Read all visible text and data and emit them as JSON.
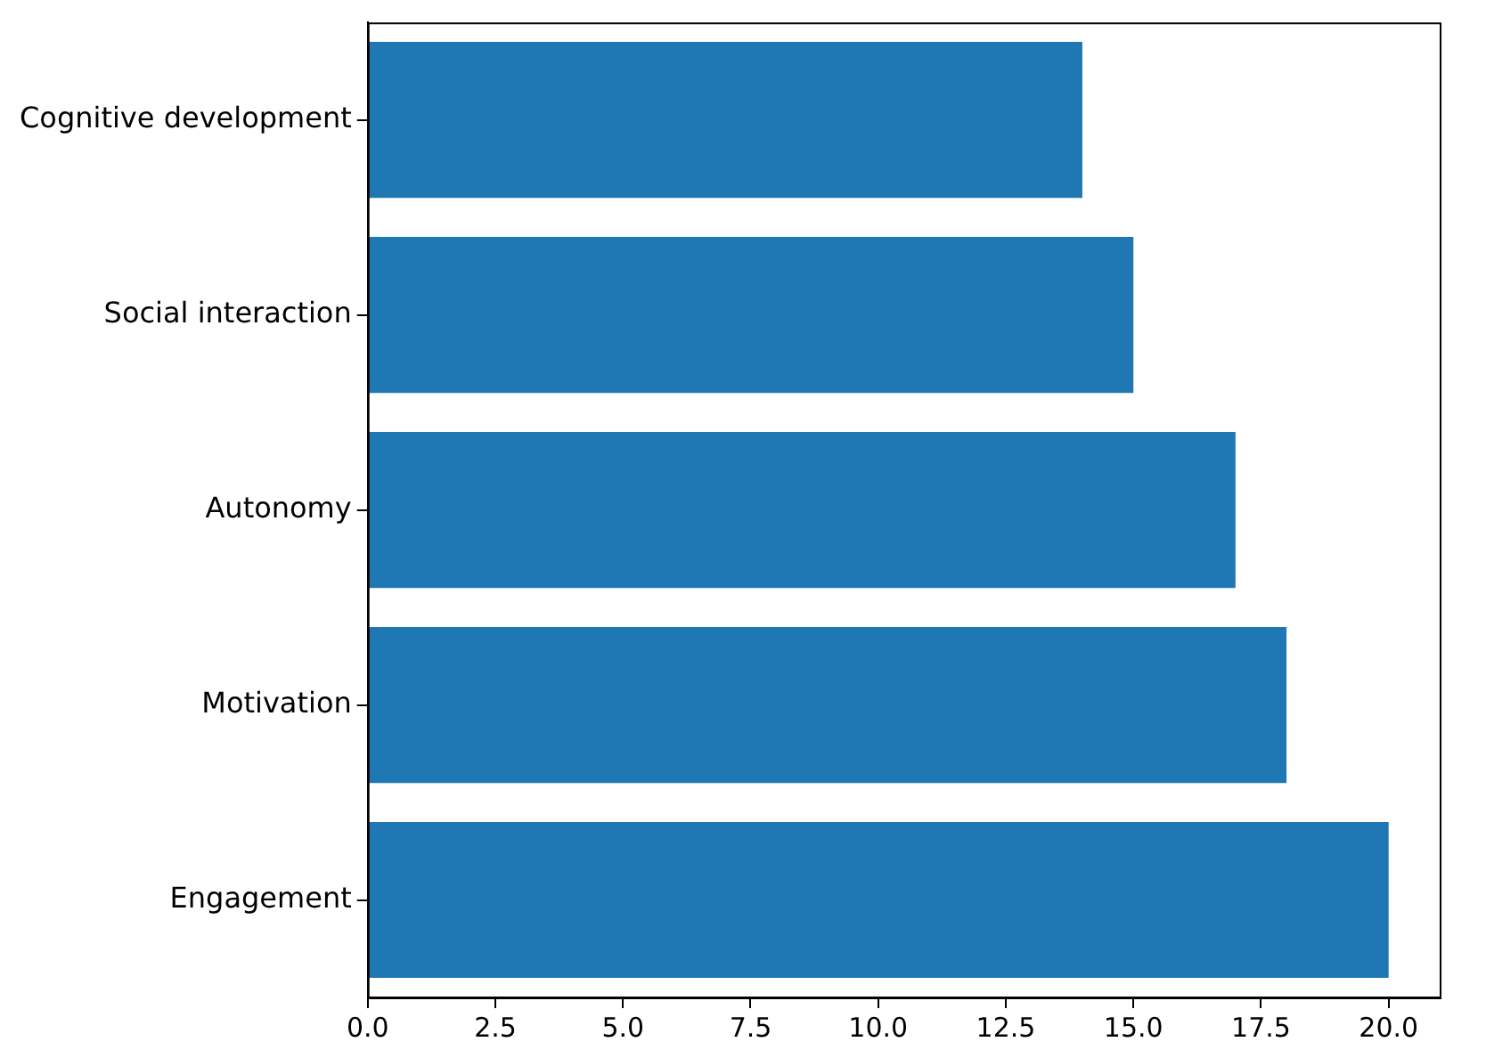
{
  "chart_data": {
    "type": "bar",
    "orientation": "horizontal",
    "categories": [
      "Cognitive development",
      "Social interaction",
      "Autonomy",
      "Motivation",
      "Engagement"
    ],
    "values": [
      14,
      15,
      17,
      18,
      20
    ],
    "color": "#1f77b4",
    "xlim": [
      0,
      21
    ],
    "xticks": [
      {
        "value": 0,
        "label": "0.0"
      },
      {
        "value": 2.5,
        "label": "2.5"
      },
      {
        "value": 5,
        "label": "5.0"
      },
      {
        "value": 7.5,
        "label": "7.5"
      },
      {
        "value": 10,
        "label": "10.0"
      },
      {
        "value": 12.5,
        "label": "12.5"
      },
      {
        "value": 15,
        "label": "15.0"
      },
      {
        "value": 17.5,
        "label": "17.5"
      },
      {
        "value": 20,
        "label": "20.0"
      }
    ],
    "grid": false,
    "legend": false
  }
}
